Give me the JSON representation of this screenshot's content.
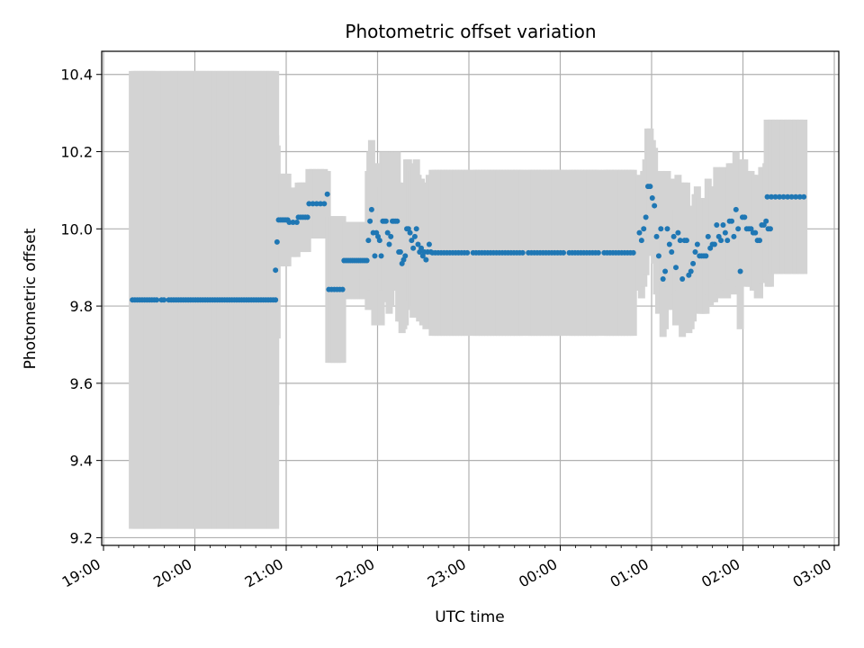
{
  "chart_data": {
    "type": "scatter",
    "title": "Photometric offset variation",
    "xlabel": "UTC time",
    "ylabel": "Photometric offset",
    "x_ticks": [
      "19:00",
      "20:00",
      "21:00",
      "22:00",
      "23:00",
      "00:00",
      "01:00",
      "02:00",
      "03:00"
    ],
    "y_ticks": [
      9.2,
      9.4,
      9.6,
      9.8,
      10.0,
      10.2,
      10.4
    ],
    "xlim": [
      "19:00",
      "03:00"
    ],
    "ylim": [
      9.18,
      10.46
    ],
    "grid": true,
    "colors": {
      "marker": "#1f77b4",
      "error_bar": "#d3d3d3",
      "grid": "#b0b0b0"
    },
    "segments": [
      {
        "t_start": "19:19",
        "t_end": "20:53",
        "n": 60,
        "y": 9.816,
        "err": 0.593,
        "skip": [
          11,
          14
        ]
      },
      {
        "t_start": "20:53",
        "t_end": "20:53",
        "n": 1,
        "y": 9.893,
        "err": 0.35
      },
      {
        "t_start": "20:54",
        "t_end": "20:54",
        "n": 1,
        "y": 9.966,
        "err": 0.25
      },
      {
        "t_start": "20:55",
        "t_end": "21:01",
        "n": 6,
        "y": 10.023,
        "err": 0.12
      },
      {
        "t_start": "21:02",
        "t_end": "21:07",
        "n": 3,
        "y": 10.017,
        "err": 0.09
      },
      {
        "t_start": "21:08",
        "t_end": "21:14",
        "n": 5,
        "y": 10.03,
        "err": 0.09
      },
      {
        "t_start": "21:15",
        "t_end": "21:25",
        "n": 5,
        "y": 10.065,
        "err": 0.09
      },
      {
        "t_start": "21:27",
        "t_end": "21:27",
        "n": 1,
        "y": 10.09,
        "err": 0.06
      },
      {
        "t_start": "21:28",
        "t_end": "21:37",
        "n": 6,
        "y": 9.843,
        "err": 0.19
      },
      {
        "t_start": "21:38",
        "t_end": "21:53",
        "n": 12,
        "y": 9.918,
        "err": 0.1
      },
      {
        "t_start": "21:54",
        "t_end": "22:35",
        "n": 40,
        "scatter": [
          9.97,
          10.02,
          10.05,
          9.99,
          9.93,
          9.99,
          9.98,
          9.97,
          9.93,
          10.02,
          10.02,
          10.02,
          9.99,
          9.96,
          9.98,
          10.02,
          10.02,
          10.02,
          10.02,
          9.94,
          9.94,
          9.91,
          9.92,
          9.93,
          10.0,
          10.0,
          9.99,
          9.97,
          9.95,
          9.98,
          10.0,
          9.96,
          9.94,
          9.95,
          9.93,
          9.94,
          9.92,
          9.94,
          9.96,
          9.94
        ],
        "err": 0.18
      },
      {
        "t_start": "22:36",
        "t_end": "00:48",
        "n": 70,
        "y": 9.938,
        "err": 0.215,
        "skip": [
          13,
          32,
          46,
          58
        ]
      },
      {
        "t_start": "00:52",
        "t_end": "02:18",
        "n": 62,
        "scatter": [
          9.99,
          9.97,
          10.0,
          10.03,
          10.11,
          10.11,
          10.08,
          10.06,
          9.98,
          9.93,
          10.0,
          9.87,
          9.89,
          10.0,
          9.96,
          9.94,
          9.98,
          9.9,
          9.99,
          9.97,
          9.87,
          9.97,
          9.97,
          9.88,
          9.89,
          9.91,
          9.94,
          9.96,
          9.93,
          9.93,
          9.93,
          9.93,
          9.98,
          9.95,
          9.96,
          9.96,
          10.01,
          9.98,
          9.97,
          10.01,
          9.99,
          9.97,
          10.02,
          10.02,
          9.98,
          10.05,
          10.0,
          9.89,
          10.03,
          10.03,
          10.0,
          10.0,
          10.0,
          9.99,
          9.99,
          9.97,
          9.97,
          10.01,
          10.01,
          10.02,
          10.0,
          10.0
        ],
        "err": 0.15
      },
      {
        "t_start": "02:16",
        "t_end": "02:40",
        "n": 10,
        "y": 10.083,
        "err": 0.2
      }
    ]
  }
}
